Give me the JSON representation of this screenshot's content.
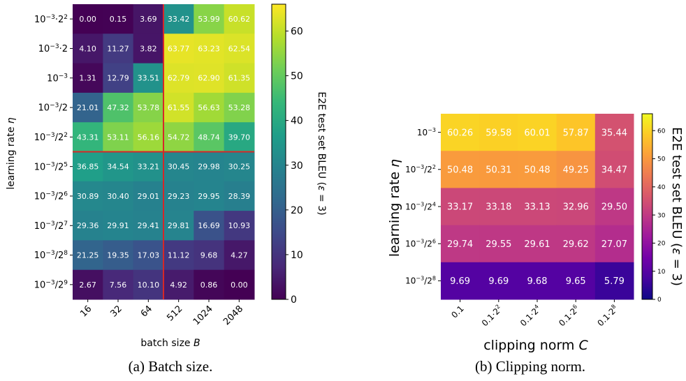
{
  "chart_data": [
    {
      "type": "heatmap",
      "xlabel": "batch size B",
      "ylabel": "learning rate η",
      "x_tick_labels": [
        "16",
        "32",
        "64",
        "512",
        "1024",
        "2048"
      ],
      "y_tick_labels": [
        "10^{-3}·2^{2}",
        "10^{-3}·2",
        "10^{-3}",
        "10^{-3}/2",
        "10^{-3}/2^{2}",
        "10^{-3}/2^{5}",
        "10^{-3}/2^{6}",
        "10^{-3}/2^{7}",
        "10^{-3}/2^{8}",
        "10^{-3}/2^{9}"
      ],
      "values": [
        [
          0.0,
          0.15,
          3.69,
          33.42,
          53.99,
          60.62
        ],
        [
          4.1,
          11.27,
          3.82,
          63.77,
          63.23,
          62.54
        ],
        [
          1.31,
          12.79,
          33.51,
          62.79,
          62.9,
          61.35
        ],
        [
          21.01,
          47.32,
          53.78,
          61.55,
          56.63,
          53.28
        ],
        [
          43.31,
          53.11,
          56.16,
          54.72,
          48.74,
          39.7
        ],
        [
          36.85,
          34.54,
          33.21,
          30.45,
          29.98,
          30.25
        ],
        [
          30.89,
          30.4,
          29.01,
          29.23,
          29.95,
          28.39
        ],
        [
          29.36,
          29.91,
          29.41,
          29.81,
          16.69,
          10.93
        ],
        [
          21.25,
          19.35,
          17.03,
          11.12,
          9.68,
          4.27
        ],
        [
          2.67,
          7.56,
          10.1,
          4.92,
          0.86,
          0.0
        ]
      ],
      "colormap": "viridis",
      "colorbar": {
        "label": "E2E test set BLEU (ε = 3)",
        "range": [
          0,
          66
        ],
        "ticks": [
          0,
          10,
          20,
          30,
          40,
          50,
          60
        ]
      },
      "caption": "(a) Batch size."
    },
    {
      "type": "heatmap",
      "xlabel": "clipping norm C",
      "ylabel": "learning rate η",
      "x_tick_labels": [
        "0.1",
        "0.1·2^{2}",
        "0.1·2^{4}",
        "0.1·2^{6}",
        "0.1·2^{8}"
      ],
      "y_tick_labels": [
        "10^{-3}",
        "10^{-3}/2^{2}",
        "10^{-3}/2^{4}",
        "10^{-3}/2^{6}",
        "10^{-3}/2^{8}"
      ],
      "values": [
        [
          60.26,
          59.58,
          60.01,
          57.87,
          35.44
        ],
        [
          50.48,
          50.31,
          50.48,
          49.25,
          34.47
        ],
        [
          33.17,
          33.18,
          33.13,
          32.96,
          29.5
        ],
        [
          29.74,
          29.55,
          29.61,
          29.62,
          27.07
        ],
        [
          9.69,
          9.69,
          9.68,
          9.65,
          5.79
        ]
      ],
      "colormap": "plasma",
      "colorbar": {
        "label": "E2E test set BLEU (ε = 3)",
        "range": [
          0,
          66
        ],
        "ticks": [
          0,
          10,
          20,
          30,
          40,
          50,
          60
        ]
      },
      "caption": "(b) Clipping norm."
    }
  ]
}
